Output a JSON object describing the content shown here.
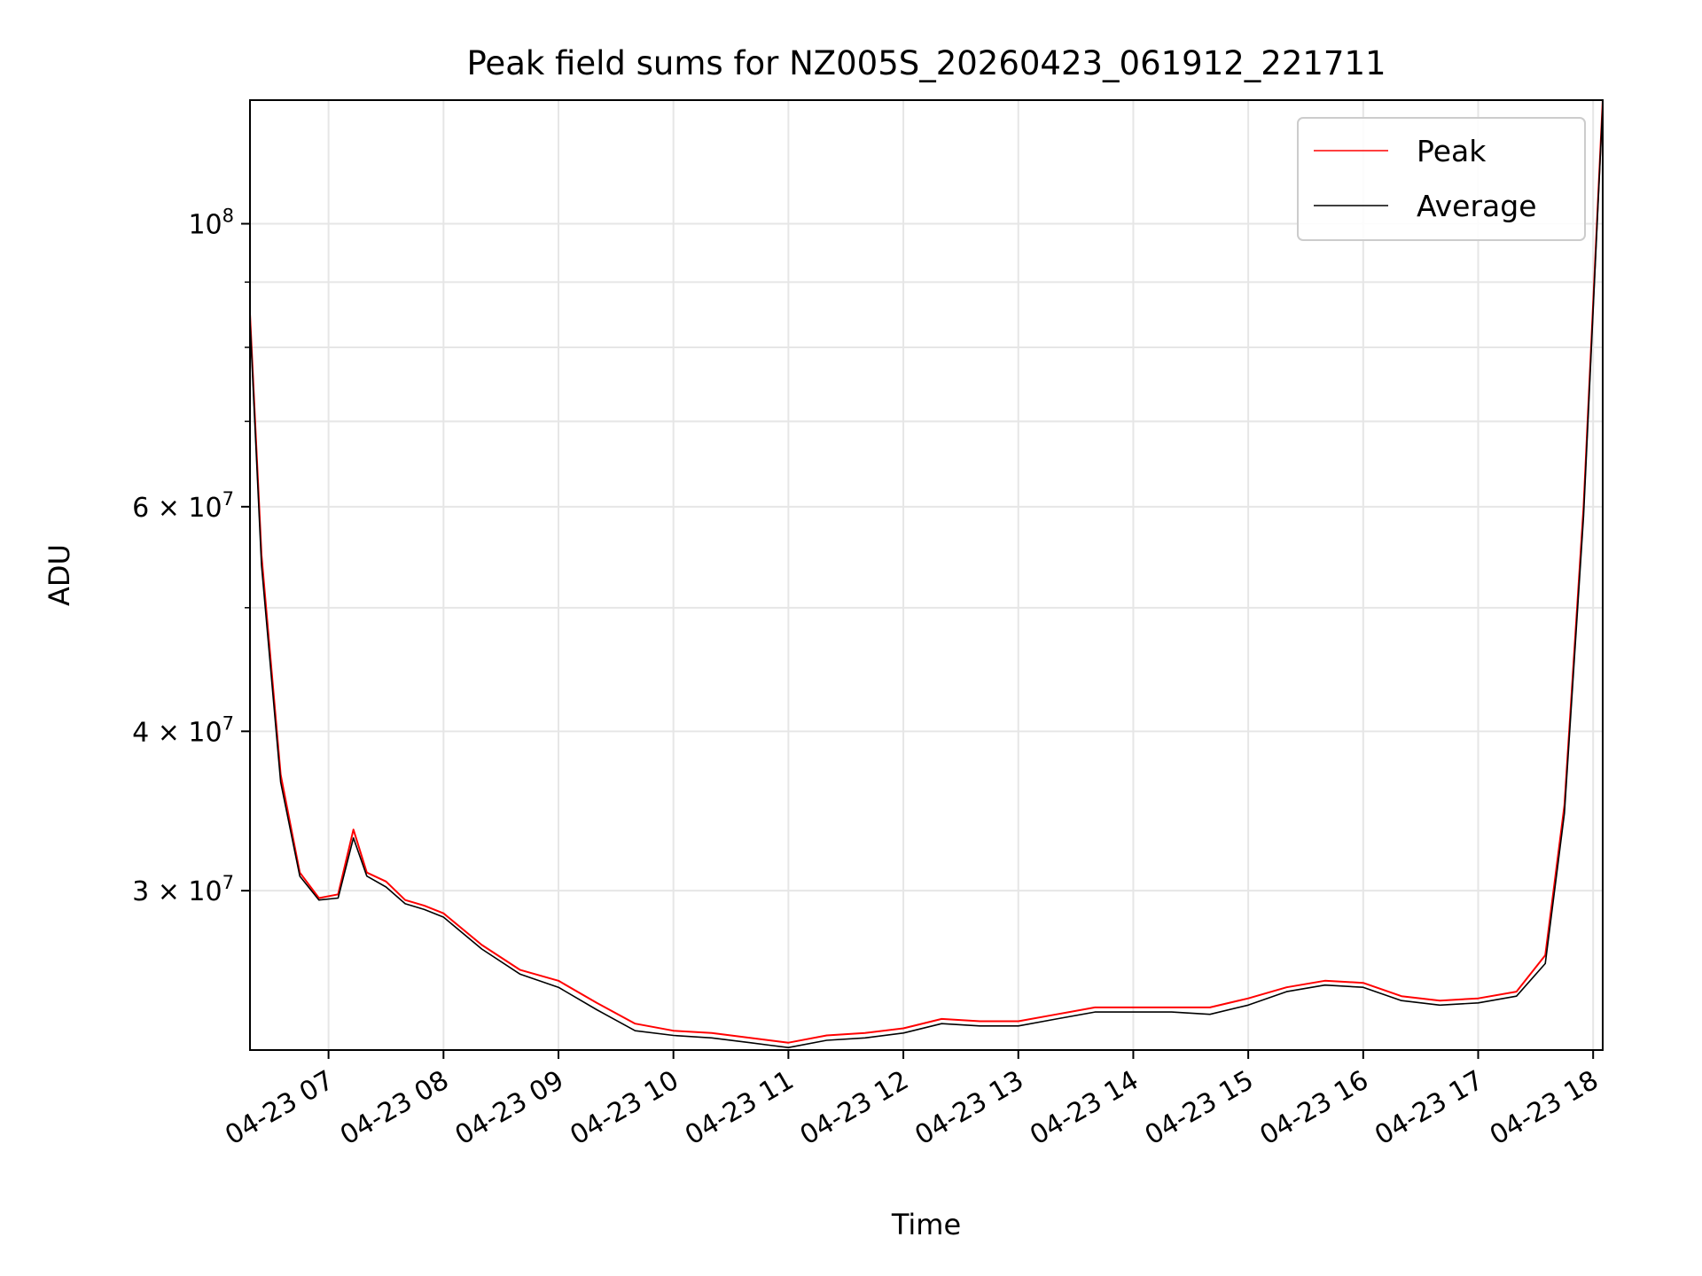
{
  "chart_data": {
    "type": "line",
    "title": "Peak field sums for NZ005S_20260423_061912_221711",
    "xlabel": "Time",
    "ylabel": "ADU",
    "yscale": "log",
    "grid": true,
    "legend_placement": "top-right",
    "xlim": [
      "04-23 06:19",
      "04-23 18:05"
    ],
    "ylim": [
      22500000,
      125000000
    ],
    "x_ticks": [
      "04-23 07",
      "04-23 08",
      "04-23 09",
      "04-23 10",
      "04-23 11",
      "04-23 12",
      "04-23 13",
      "04-23 14",
      "04-23 15",
      "04-23 16",
      "04-23 17",
      "04-23 18"
    ],
    "y_ticks": [
      {
        "value": 30000000,
        "mantissa": "3",
        "exponent": "7"
      },
      {
        "value": 40000000,
        "mantissa": "4",
        "exponent": "7"
      },
      {
        "value": 60000000,
        "mantissa": "6",
        "exponent": "7"
      },
      {
        "value": 100000000,
        "mantissa": "",
        "exponent": "8"
      }
    ],
    "y_minor_ticks": [
      50000000,
      70000000,
      80000000,
      90000000
    ],
    "series": [
      {
        "name": "Peak",
        "color": "#ff0000",
        "x": [
          "04-23 06:19",
          "04-23 06:25",
          "04-23 06:35",
          "04-23 06:45",
          "04-23 06:55",
          "04-23 07:05",
          "04-23 07:13",
          "04-23 07:20",
          "04-23 07:30",
          "04-23 07:40",
          "04-23 07:50",
          "04-23 08:00",
          "04-23 08:20",
          "04-23 08:40",
          "04-23 09:00",
          "04-23 09:20",
          "04-23 09:40",
          "04-23 10:00",
          "04-23 10:20",
          "04-23 10:40",
          "04-23 10:50",
          "04-23 11:00",
          "04-23 11:20",
          "04-23 11:40",
          "04-23 12:00",
          "04-23 12:20",
          "04-23 12:40",
          "04-23 13:00",
          "04-23 13:20",
          "04-23 13:40",
          "04-23 14:00",
          "04-23 14:20",
          "04-23 14:40",
          "04-23 15:00",
          "04-23 15:20",
          "04-23 15:40",
          "04-23 16:00",
          "04-23 16:20",
          "04-23 16:40",
          "04-23 17:00",
          "04-23 17:20",
          "04-23 17:35",
          "04-23 17:45",
          "04-23 17:55",
          "04-23 18:05"
        ],
        "values": [
          85000000,
          55000000,
          37000000,
          31000000,
          29600000,
          29800000,
          33500000,
          31000000,
          30500000,
          29500000,
          29200000,
          28800000,
          27200000,
          26000000,
          25500000,
          24500000,
          23600000,
          23300000,
          23200000,
          23000000,
          22900000,
          22800000,
          23100000,
          23200000,
          23400000,
          23800000,
          23700000,
          23700000,
          24000000,
          24300000,
          24300000,
          24300000,
          24300000,
          24700000,
          25200000,
          25500000,
          25400000,
          24800000,
          24600000,
          24700000,
          25000000,
          26700000,
          35000000,
          60000000,
          125000000
        ]
      },
      {
        "name": "Average",
        "color": "#000000",
        "x": [
          "04-23 06:19",
          "04-23 06:25",
          "04-23 06:35",
          "04-23 06:45",
          "04-23 06:55",
          "04-23 07:05",
          "04-23 07:13",
          "04-23 07:20",
          "04-23 07:30",
          "04-23 07:40",
          "04-23 07:50",
          "04-23 08:00",
          "04-23 08:20",
          "04-23 08:40",
          "04-23 09:00",
          "04-23 09:20",
          "04-23 09:40",
          "04-23 10:00",
          "04-23 10:20",
          "04-23 10:40",
          "04-23 10:50",
          "04-23 11:00",
          "04-23 11:20",
          "04-23 11:40",
          "04-23 12:00",
          "04-23 12:20",
          "04-23 12:40",
          "04-23 13:00",
          "04-23 13:20",
          "04-23 13:40",
          "04-23 14:00",
          "04-23 14:20",
          "04-23 14:40",
          "04-23 15:00",
          "04-23 15:20",
          "04-23 15:40",
          "04-23 16:00",
          "04-23 16:20",
          "04-23 16:40",
          "04-23 17:00",
          "04-23 17:20",
          "04-23 17:35",
          "04-23 17:45",
          "04-23 17:55",
          "04-23 18:05"
        ],
        "values": [
          84000000,
          54000000,
          36500000,
          30800000,
          29500000,
          29600000,
          33000000,
          30800000,
          30200000,
          29300000,
          29000000,
          28600000,
          27000000,
          25800000,
          25200000,
          24200000,
          23300000,
          23100000,
          23000000,
          22800000,
          22700000,
          22600000,
          22900000,
          23000000,
          23200000,
          23600000,
          23500000,
          23500000,
          23800000,
          24100000,
          24100000,
          24100000,
          24000000,
          24400000,
          25000000,
          25300000,
          25200000,
          24600000,
          24400000,
          24500000,
          24800000,
          26300000,
          34500000,
          59000000,
          124000000
        ]
      }
    ]
  }
}
